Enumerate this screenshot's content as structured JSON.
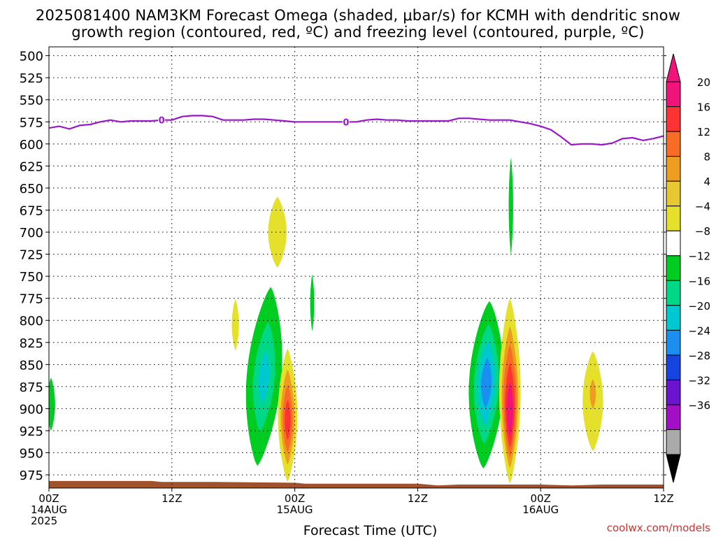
{
  "title_line1": "2025081400 NAM3KM Forecast Omega (shaded, μbar/s) for KCMH with dendritic snow",
  "title_line2": "growth region (contoured, red, ºC) and freezing level (contoured, purple, ºC)",
  "credit": "coolwx.com/models",
  "chart_data": {
    "type": "heatmap",
    "xlabel": "Forecast Time (UTC)",
    "ylabel": "",
    "x_range_hours": [
      0,
      60
    ],
    "y_range_hPa": [
      490,
      990
    ],
    "grid": true,
    "y_ticks": [
      500,
      525,
      550,
      575,
      600,
      625,
      650,
      675,
      700,
      725,
      750,
      775,
      800,
      825,
      850,
      875,
      900,
      925,
      950,
      975
    ],
    "x_ticks": [
      {
        "hour": 0,
        "lines": [
          "00Z",
          "14AUG",
          "2025"
        ]
      },
      {
        "hour": 12,
        "lines": [
          "12Z"
        ]
      },
      {
        "hour": 24,
        "lines": [
          "00Z",
          "15AUG"
        ]
      },
      {
        "hour": 36,
        "lines": [
          "12Z"
        ]
      },
      {
        "hour": 48,
        "lines": [
          "00Z",
          "16AUG"
        ]
      },
      {
        "hour": 60,
        "lines": [
          "12Z"
        ]
      }
    ],
    "colorbar": {
      "labels": [
        "20",
        "16",
        "12",
        "8",
        "4",
        "−4",
        "−8",
        "−12",
        "−16",
        "−20",
        "−24",
        "−28",
        "−32",
        "−36"
      ],
      "colors_top_to_bottom": [
        "#f0147a",
        "#ff3333",
        "#f76d25",
        "#ee9d20",
        "#e8c832",
        "#e4e02c",
        "#ffffff",
        "#00cc22",
        "#00d888",
        "#00c8d0",
        "#1a8ff0",
        "#1544e0",
        "#6a14d0",
        "#a30fc4",
        "#aaaaaa"
      ],
      "top_arrow_color": "#f0147a",
      "bottom_arrow_color": "#000000"
    },
    "freezing_level": {
      "color": "#9a16c8",
      "label": "0",
      "label_hours": [
        11,
        29
      ],
      "points": [
        [
          0,
          582
        ],
        [
          1,
          580
        ],
        [
          2,
          583
        ],
        [
          3,
          579
        ],
        [
          4,
          578
        ],
        [
          5,
          575
        ],
        [
          6,
          573
        ],
        [
          7,
          575
        ],
        [
          8,
          574
        ],
        [
          9,
          574
        ],
        [
          10,
          574
        ],
        [
          11,
          573
        ],
        [
          12,
          573
        ],
        [
          13,
          569
        ],
        [
          14,
          568
        ],
        [
          15,
          568
        ],
        [
          16,
          569
        ],
        [
          17,
          573
        ],
        [
          18,
          573
        ],
        [
          19,
          573
        ],
        [
          20,
          572
        ],
        [
          21,
          572
        ],
        [
          22,
          573
        ],
        [
          23,
          574
        ],
        [
          24,
          575
        ],
        [
          25,
          575
        ],
        [
          26,
          575
        ],
        [
          27,
          575
        ],
        [
          28,
          575
        ],
        [
          29,
          575
        ],
        [
          30,
          575
        ],
        [
          31,
          573
        ],
        [
          32,
          572
        ],
        [
          33,
          573
        ],
        [
          34,
          573
        ],
        [
          35,
          574
        ],
        [
          36,
          574
        ],
        [
          37,
          574
        ],
        [
          38,
          574
        ],
        [
          39,
          574
        ],
        [
          40,
          571
        ],
        [
          41,
          571
        ],
        [
          42,
          572
        ],
        [
          43,
          573
        ],
        [
          44,
          573
        ],
        [
          45,
          573
        ],
        [
          46,
          575
        ],
        [
          47,
          577
        ],
        [
          48,
          580
        ],
        [
          49,
          584
        ],
        [
          50,
          592
        ],
        [
          51,
          601
        ],
        [
          52,
          600
        ],
        [
          53,
          600
        ],
        [
          54,
          601
        ],
        [
          55,
          599
        ],
        [
          56,
          594
        ],
        [
          57,
          593
        ],
        [
          58,
          596
        ],
        [
          59,
          594
        ],
        [
          60,
          591
        ]
      ]
    },
    "omega_features": [
      {
        "name": "yellow-blob-700",
        "hour": 22.3,
        "p_top": 660,
        "p_bot": 740,
        "half_width_h": 0.9,
        "levels": [
          6
        ],
        "peak_p": 700
      },
      {
        "name": "yellow-blob-800",
        "hour": 18.2,
        "p_top": 776,
        "p_bot": 834,
        "half_width_h": 0.35,
        "levels": [
          6
        ],
        "peak_p": 805
      },
      {
        "name": "green-sliver-780",
        "hour": 25.7,
        "p_top": 748,
        "p_bot": 812,
        "half_width_h": 0.2,
        "levels": [
          -6
        ],
        "peak_p": 780
      },
      {
        "name": "green-left-edge",
        "hour": 0.2,
        "p_top": 865,
        "p_bot": 925,
        "half_width_h": 0.4,
        "levels": [
          -6
        ],
        "peak_p": 895
      },
      {
        "name": "negative-blob-day1",
        "hour": 21.0,
        "p_top": 762,
        "p_bot": 965,
        "half_width_h": 1.7,
        "skew_h": -1.3,
        "levels": [
          -6,
          -10,
          -14
        ],
        "peak_p": 865
      },
      {
        "name": "positive-blob-day1",
        "hour": 23.3,
        "p_top": 832,
        "p_bot": 983,
        "half_width_h": 0.95,
        "levels": [
          6,
          10,
          14,
          18
        ],
        "peak_p": 915
      },
      {
        "name": "negative-blob-day2",
        "hour": 42.7,
        "p_top": 778,
        "p_bot": 968,
        "half_width_h": 1.7,
        "skew_h": -0.6,
        "levels": [
          -6,
          -10,
          -14,
          -18
        ],
        "peak_p": 870
      },
      {
        "name": "positive-blob-day2",
        "hour": 45.0,
        "p_top": 775,
        "p_bot": 985,
        "half_width_h": 1.05,
        "levels": [
          6,
          10,
          14,
          18,
          22
        ],
        "peak_p": 910
      },
      {
        "name": "green-thin-650",
        "hour": 45.1,
        "p_top": 616,
        "p_bot": 725,
        "half_width_h": 0.22,
        "levels": [
          -6
        ],
        "peak_p": 680
      },
      {
        "name": "yellow-blob-880",
        "hour": 53.1,
        "p_top": 835,
        "p_bot": 948,
        "half_width_h": 1.0,
        "levels": [
          6,
          10
        ],
        "peak_p": 880
      }
    ],
    "terrain": {
      "color": "#a0522d",
      "points": [
        [
          0,
          982
        ],
        [
          10,
          982
        ],
        [
          11,
          983
        ],
        [
          16,
          983
        ],
        [
          24,
          984
        ],
        [
          25,
          985
        ],
        [
          36,
          985
        ],
        [
          38,
          987
        ],
        [
          40,
          986
        ],
        [
          48,
          986
        ],
        [
          51,
          987
        ],
        [
          54,
          986
        ],
        [
          60,
          986
        ]
      ]
    }
  }
}
